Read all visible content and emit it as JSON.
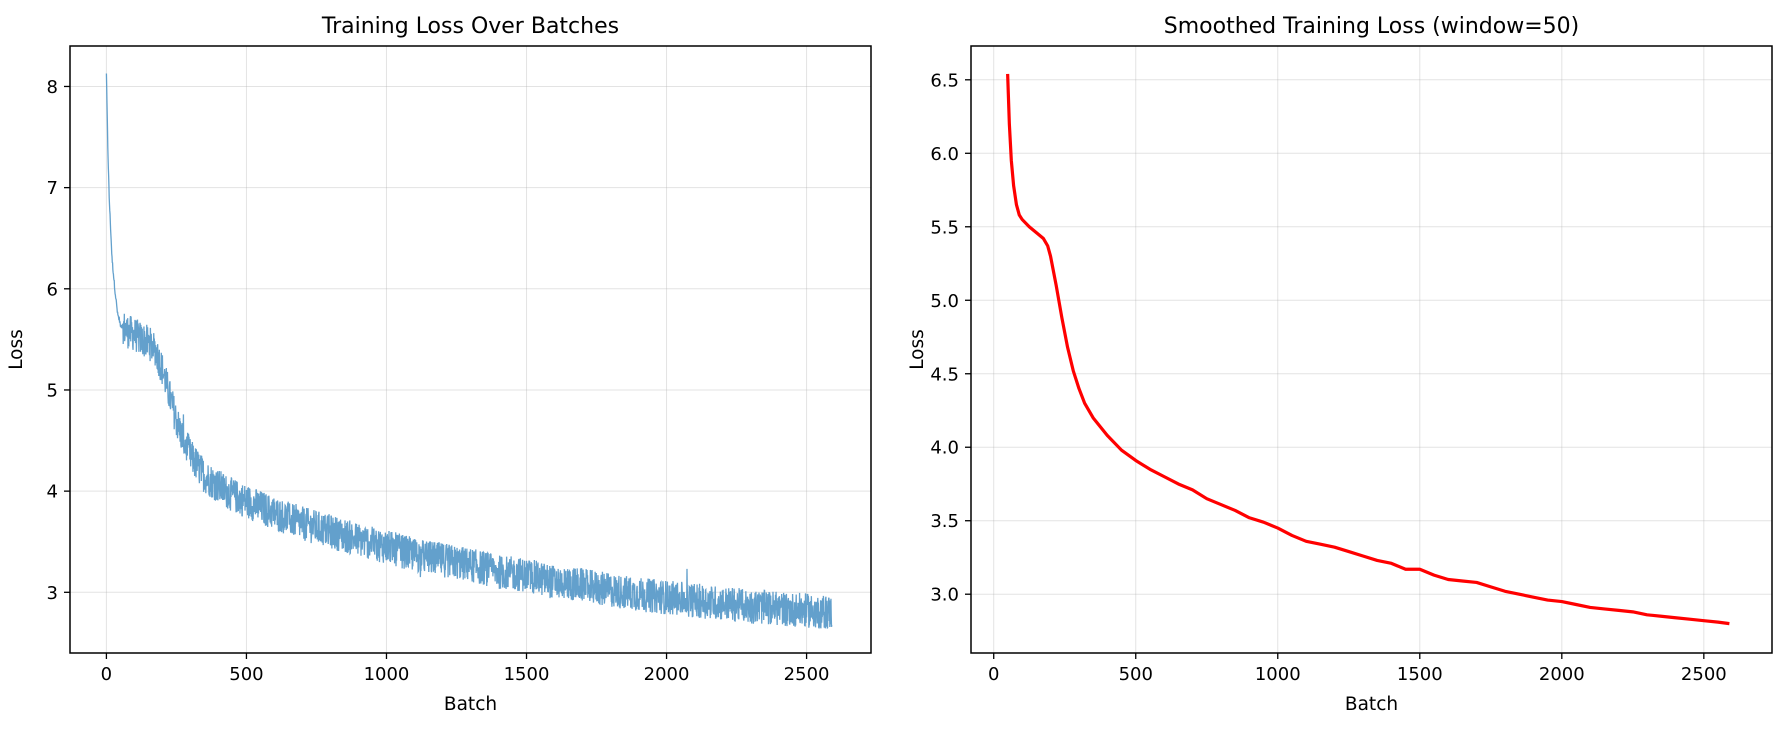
{
  "charts": [
    {
      "title": "Training Loss Over Batches",
      "xlabel": "Batch",
      "ylabel": "Loss"
    },
    {
      "title": "Smoothed Training Loss (window=50)",
      "xlabel": "Batch",
      "ylabel": "Loss"
    }
  ],
  "chart_data": [
    {
      "type": "line",
      "title": "Training Loss Over Batches",
      "xlabel": "Batch",
      "ylabel": "Loss",
      "xlim": [
        -130,
        2730
      ],
      "ylim": [
        2.4,
        8.4
      ],
      "xticks": [
        0,
        500,
        1000,
        1500,
        2000,
        2500
      ],
      "xtick_labels": [
        "0",
        "500",
        "1000",
        "1500",
        "2000",
        "2500"
      ],
      "yticks": [
        3,
        4,
        5,
        6,
        7,
        8
      ],
      "ytick_labels": [
        "3",
        "4",
        "5",
        "6",
        "7",
        "8"
      ],
      "grid": true,
      "series": [
        {
          "color": "#5b9bc9",
          "x_range": [
            0,
            2590
          ],
          "points": [
            [
              0,
              8.12
            ],
            [
              5,
              7.4
            ],
            [
              10,
              6.9
            ],
            [
              20,
              6.3
            ],
            [
              30,
              6.0
            ],
            [
              40,
              5.75
            ],
            [
              50,
              5.65
            ],
            [
              75,
              5.58
            ],
            [
              100,
              5.55
            ],
            [
              125,
              5.5
            ],
            [
              150,
              5.47
            ],
            [
              175,
              5.4
            ],
            [
              200,
              5.2
            ],
            [
              225,
              4.95
            ],
            [
              250,
              4.7
            ],
            [
              275,
              4.5
            ],
            [
              300,
              4.35
            ],
            [
              350,
              4.15
            ],
            [
              400,
              4.05
            ],
            [
              450,
              3.96
            ],
            [
              500,
              3.9
            ],
            [
              600,
              3.78
            ],
            [
              700,
              3.68
            ],
            [
              800,
              3.6
            ],
            [
              900,
              3.52
            ],
            [
              1000,
              3.45
            ],
            [
              1100,
              3.37
            ],
            [
              1200,
              3.32
            ],
            [
              1300,
              3.27
            ],
            [
              1400,
              3.2
            ],
            [
              1500,
              3.17
            ],
            [
              1600,
              3.1
            ],
            [
              1700,
              3.07
            ],
            [
              1800,
              3.02
            ],
            [
              1900,
              2.98
            ],
            [
              2000,
              2.95
            ],
            [
              2100,
              2.92
            ],
            [
              2200,
              2.89
            ],
            [
              2300,
              2.86
            ],
            [
              2400,
              2.84
            ],
            [
              2500,
              2.82
            ],
            [
              2590,
              2.8
            ]
          ],
          "noise_amplitude": 0.17
        }
      ]
    },
    {
      "type": "line",
      "title": "Smoothed Training Loss (window=50)",
      "xlabel": "Batch",
      "ylabel": "Loss",
      "xlim": [
        -80,
        2740
      ],
      "ylim": [
        2.6,
        6.73
      ],
      "xticks": [
        0,
        500,
        1000,
        1500,
        2000,
        2500
      ],
      "xtick_labels": [
        "0",
        "500",
        "1000",
        "1500",
        "2000",
        "2500"
      ],
      "yticks": [
        3.0,
        3.5,
        4.0,
        4.5,
        5.0,
        5.5,
        6.0,
        6.5
      ],
      "ytick_labels": [
        "3.0",
        "3.5",
        "4.0",
        "4.5",
        "5.0",
        "5.5",
        "6.0",
        "6.5"
      ],
      "grid": true,
      "series": [
        {
          "color": "#ff0000",
          "points": [
            [
              49,
              6.54
            ],
            [
              55,
              6.2
            ],
            [
              62,
              5.95
            ],
            [
              70,
              5.78
            ],
            [
              80,
              5.65
            ],
            [
              90,
              5.58
            ],
            [
              100,
              5.55
            ],
            [
              125,
              5.5
            ],
            [
              150,
              5.46
            ],
            [
              175,
              5.42
            ],
            [
              190,
              5.37
            ],
            [
              200,
              5.3
            ],
            [
              220,
              5.1
            ],
            [
              240,
              4.88
            ],
            [
              260,
              4.68
            ],
            [
              280,
              4.52
            ],
            [
              300,
              4.4
            ],
            [
              320,
              4.3
            ],
            [
              350,
              4.2
            ],
            [
              400,
              4.08
            ],
            [
              450,
              3.98
            ],
            [
              500,
              3.91
            ],
            [
              550,
              3.85
            ],
            [
              600,
              3.8
            ],
            [
              650,
              3.75
            ],
            [
              700,
              3.71
            ],
            [
              750,
              3.65
            ],
            [
              800,
              3.61
            ],
            [
              850,
              3.57
            ],
            [
              900,
              3.52
            ],
            [
              950,
              3.49
            ],
            [
              1000,
              3.45
            ],
            [
              1050,
              3.4
            ],
            [
              1100,
              3.36
            ],
            [
              1150,
              3.34
            ],
            [
              1200,
              3.32
            ],
            [
              1250,
              3.29
            ],
            [
              1300,
              3.26
            ],
            [
              1350,
              3.23
            ],
            [
              1400,
              3.21
            ],
            [
              1450,
              3.17
            ],
            [
              1500,
              3.17
            ],
            [
              1550,
              3.13
            ],
            [
              1600,
              3.1
            ],
            [
              1650,
              3.09
            ],
            [
              1700,
              3.08
            ],
            [
              1750,
              3.05
            ],
            [
              1800,
              3.02
            ],
            [
              1850,
              3.0
            ],
            [
              1900,
              2.98
            ],
            [
              1950,
              2.96
            ],
            [
              2000,
              2.95
            ],
            [
              2050,
              2.93
            ],
            [
              2100,
              2.91
            ],
            [
              2150,
              2.9
            ],
            [
              2200,
              2.89
            ],
            [
              2250,
              2.88
            ],
            [
              2300,
              2.86
            ],
            [
              2350,
              2.85
            ],
            [
              2400,
              2.84
            ],
            [
              2450,
              2.83
            ],
            [
              2500,
              2.82
            ],
            [
              2550,
              2.81
            ],
            [
              2590,
              2.8
            ]
          ]
        }
      ]
    }
  ]
}
